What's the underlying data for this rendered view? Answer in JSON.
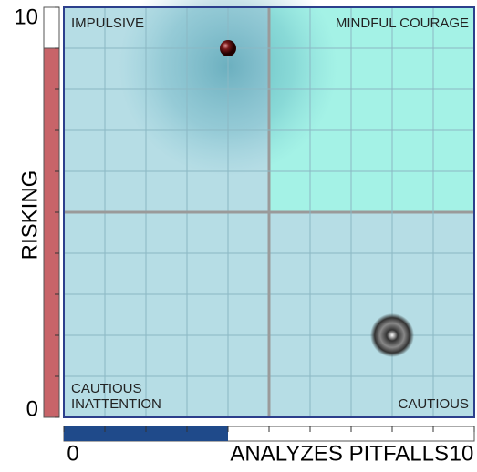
{
  "chart_data": {
    "type": "scatter",
    "xlabel": "ANALYZES PITFALLS",
    "ylabel": "RISKING",
    "xlim": [
      0,
      10
    ],
    "ylim": [
      0,
      10
    ],
    "xticks": [
      0,
      10
    ],
    "yticks": [
      0,
      10
    ],
    "grid": true,
    "grid_ticks": [
      0,
      1,
      2,
      3,
      4,
      5,
      6,
      7,
      8,
      9,
      10
    ],
    "x": [
      4,
      8
    ],
    "y": [
      9,
      2
    ],
    "quadrants": {
      "top_left": [
        "IMPULSIVE"
      ],
      "top_right": [
        "MINDFUL COURAGE"
      ],
      "bottom_left": [
        "CAUTIOUS",
        "INATTENTION"
      ],
      "bottom_right": [
        "CAUTIOUS"
      ]
    },
    "highlight_color": "#a4f2e6",
    "background_color": "#b6dde5",
    "risking_level": 9,
    "risking_color": "#c86469",
    "pitfalls_level": 4,
    "pitfalls_color": "#1f4a8a"
  }
}
